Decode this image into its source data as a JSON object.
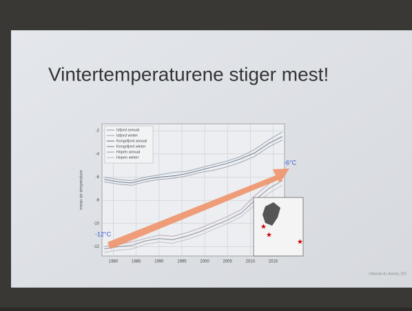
{
  "chart_data": {
    "type": "line",
    "title": "Vintertemperaturene stiger mest!",
    "y_label": "mean air temperature",
    "x": [
      1978,
      1981,
      1984,
      1987,
      1990,
      1993,
      1996,
      1999,
      2002,
      2005,
      2008,
      2011,
      2014,
      2017
    ],
    "series": [
      {
        "name": "Isfjord annual",
        "color": "#9aa7b8",
        "values": [
          -6.0,
          -6.2,
          -6.3,
          -6.0,
          -5.8,
          -5.6,
          -5.5,
          -5.2,
          -4.9,
          -4.6,
          -4.2,
          -3.6,
          -2.8,
          -2.1
        ]
      },
      {
        "name": "Isfjord winter",
        "color": "#b7a9b3",
        "values": [
          -12.0,
          -11.8,
          -11.6,
          -11.3,
          -11.0,
          -11.1,
          -10.8,
          -10.4,
          -9.9,
          -9.4,
          -8.8,
          -7.6,
          -6.6,
          -5.9
        ]
      },
      {
        "name": "Kongsfjord annual",
        "color": "#6f7d90",
        "values": [
          -6.2,
          -6.4,
          -6.5,
          -6.2,
          -6.0,
          -5.9,
          -5.7,
          -5.4,
          -5.1,
          -4.8,
          -4.4,
          -3.9,
          -3.1,
          -2.5
        ]
      },
      {
        "name": "Kongsfjord winter",
        "color": "#8c8f9a",
        "values": [
          -12.2,
          -12.0,
          -11.9,
          -11.5,
          -11.3,
          -11.4,
          -11.1,
          -10.7,
          -10.2,
          -9.7,
          -9.1,
          -8.0,
          -7.0,
          -6.3
        ]
      },
      {
        "name": "Hopen annual",
        "color": "#a0a4b0",
        "values": [
          -6.4,
          -6.6,
          -6.7,
          -6.4,
          -6.2,
          -6.1,
          -5.9,
          -5.6,
          -5.4,
          -5.1,
          -4.7,
          -4.2,
          -3.4,
          -2.8
        ]
      },
      {
        "name": "Hopen winter",
        "color": "#c0c2c8",
        "values": [
          -12.5,
          -12.3,
          -12.2,
          -11.8,
          -11.6,
          -11.7,
          -11.4,
          -11.0,
          -10.5,
          -10.0,
          -9.4,
          -8.4,
          -7.4,
          -6.7
        ]
      }
    ],
    "xlim": [
      1977.5,
      2017.5
    ],
    "xticks": [
      1980,
      1985,
      1990,
      1995,
      2000,
      2005,
      2010,
      2015
    ],
    "ylim": [
      -12.8,
      -1.4
    ],
    "yticks": [
      -2,
      -4,
      -6,
      -8,
      -10,
      -12
    ],
    "grid": true,
    "legend": "upper left",
    "annotations": [
      "-6°C",
      "-12°C"
    ],
    "source": "Urbanski & Litwicka, 202"
  }
}
